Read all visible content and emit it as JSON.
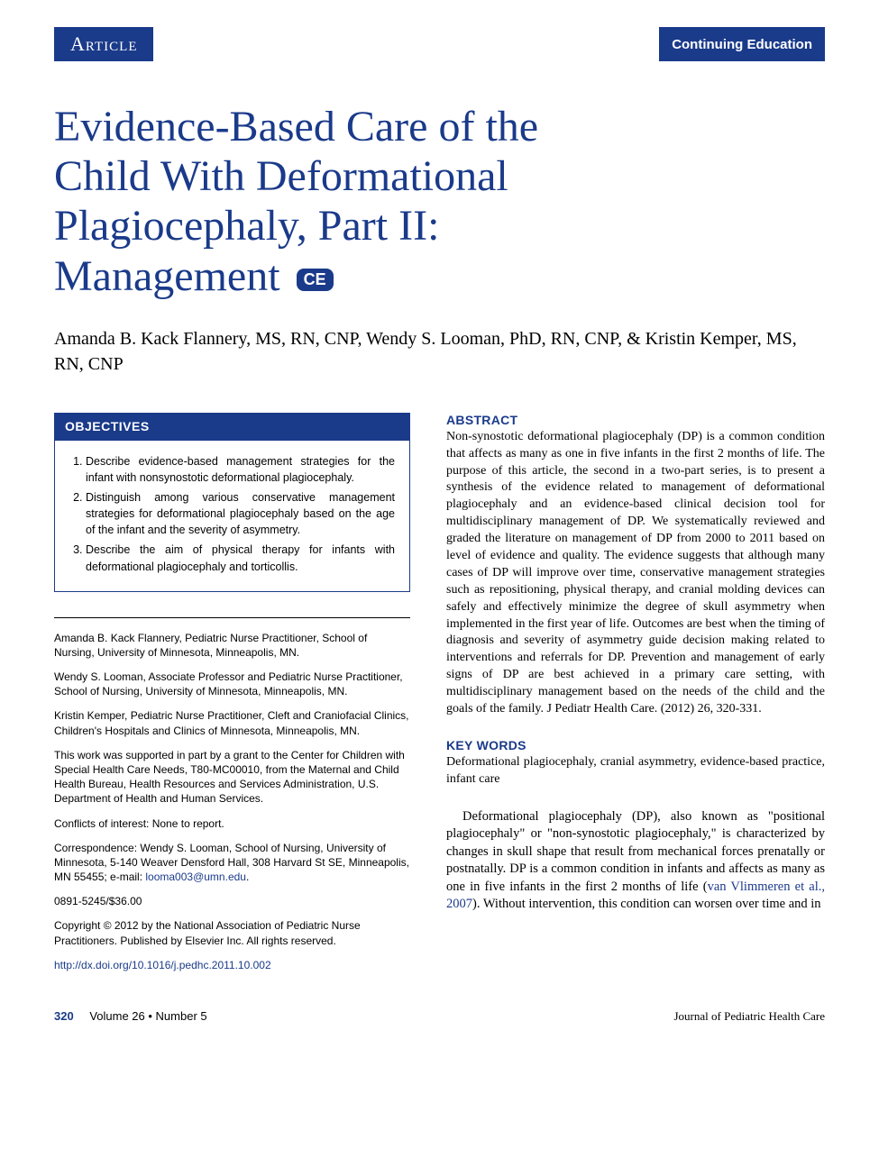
{
  "colors": {
    "brand": "#1a3a8a",
    "text": "#000000",
    "background": "#ffffff"
  },
  "typography": {
    "title_fontsize": 48,
    "author_fontsize": 20,
    "body_fontsize": 14.5,
    "meta_fontsize": 12
  },
  "header": {
    "left_label": "Article",
    "right_label": "Continuing Education"
  },
  "title_lines": {
    "line1": "Evidence-Based Care of the",
    "line2": "Child With Deformational",
    "line3": "Plagiocephaly, Part II:",
    "line4": "Management"
  },
  "ce_badge": "CE",
  "authors": "Amanda B. Kack Flannery, MS, RN, CNP, Wendy S. Looman, PhD, RN, CNP, & Kristin Kemper, MS, RN, CNP",
  "objectives": {
    "heading": "OBJECTIVES",
    "items": [
      "Describe evidence-based management strategies for the infant with nonsynostotic deformational plagiocephaly.",
      "Distinguish among various conservative management strategies for deformational plagiocephaly based on the age of the infant and the severity of asymmetry.",
      "Describe the aim of physical therapy for infants with deformational plagiocephaly and torticollis."
    ]
  },
  "affiliations": [
    "Amanda B. Kack Flannery, Pediatric Nurse Practitioner, School of Nursing, University of Minnesota, Minneapolis, MN.",
    "Wendy S. Looman, Associate Professor and Pediatric Nurse Practitioner, School of Nursing, University of Minnesota, Minneapolis, MN.",
    "Kristin Kemper, Pediatric Nurse Practitioner, Cleft and Craniofacial Clinics, Children's Hospitals and Clinics of Minnesota, Minneapolis, MN.",
    "This work was supported in part by a grant to the Center for Children with Special Health Care Needs, T80-MC00010, from the Maternal and Child Health Bureau, Health Resources and Services Administration, U.S. Department of Health and Human Services.",
    "Conflicts of interest: None to report."
  ],
  "correspondence": {
    "prefix": "Correspondence: Wendy S. Looman, School of Nursing, University of Minnesota, 5-140 Weaver Densford Hall, 308 Harvard St SE, Minneapolis, MN 55455; e-mail: ",
    "email": "looma003@umn.edu",
    "suffix": "."
  },
  "issn_price": "0891-5245/$36.00",
  "copyright": "Copyright © 2012 by the National Association of Pediatric Nurse Practitioners. Published by Elsevier Inc. All rights reserved.",
  "doi": "http://dx.doi.org/10.1016/j.pedhc.2011.10.002",
  "abstract": {
    "heading": "ABSTRACT",
    "text": "Non-synostotic deformational plagiocephaly (DP) is a common condition that affects as many as one in five infants in the first 2 months of life. The purpose of this article, the second in a two-part series, is to present a synthesis of the evidence related to management of deformational plagiocephaly and an evidence-based clinical decision tool for multidisciplinary management of DP. We systematically reviewed and graded the literature on management of DP from 2000 to 2011 based on level of evidence and quality. The evidence suggests that although many cases of DP will improve over time, conservative management strategies such as repositioning, physical therapy, and cranial molding devices can safely and effectively minimize the degree of skull asymmetry when implemented in the first year of life. Outcomes are best when the timing of diagnosis and severity of asymmetry guide decision making related to interventions and referrals for DP. Prevention and management of early signs of DP are best achieved in a primary care setting, with multidisciplinary management based on the needs of the child and the goals of the family. J Pediatr Health Care. (2012) 26, 320-331."
  },
  "keywords": {
    "heading": "KEY WORDS",
    "text": "Deformational plagiocephaly, cranial asymmetry, evidence-based practice, infant care"
  },
  "body": {
    "para1_a": "Deformational plagiocephaly (DP), also known as \"positional plagiocephaly\" or \"non-synostotic plagiocephaly,\" is characterized by changes in skull shape that result from mechanical forces prenatally or postnatally. DP is a common condition in infants and affects as many as one in five infants in the first 2 months of life (",
    "para1_cite": "van Vlimmeren et al., 2007",
    "para1_b": "). Without intervention, this condition can worsen over time and in"
  },
  "footer": {
    "page_number": "320",
    "volume_issue": "Volume 26 • Number 5",
    "journal": "Journal of Pediatric Health Care"
  }
}
